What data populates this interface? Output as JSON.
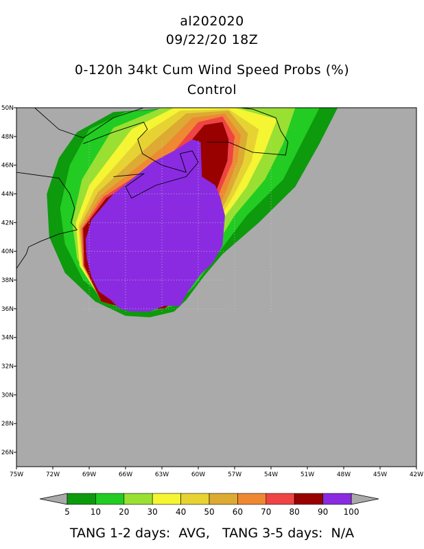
{
  "title_lines": [
    "al202020",
    "09/22/20 18Z",
    "0-120h 34kt Cum Wind Speed Probs (%)",
    "Control"
  ],
  "footer": "TANG 1-2 days:  AVG,   TANG 3-5 days:  N/A",
  "chart_data": {
    "type": "heatmap",
    "title": "0-120h 34kt Cum Wind Speed Probs (%)",
    "subtitle": "Control",
    "storm_id": "al202020",
    "valid_time": "09/22/20 18Z",
    "x_ticks": [
      "75W",
      "72W",
      "69W",
      "66W",
      "63W",
      "60W",
      "57W",
      "54W",
      "51W",
      "48W",
      "45W",
      "42W"
    ],
    "x_values": [
      -75,
      -72,
      -69,
      -66,
      -63,
      -60,
      -57,
      -54,
      -51,
      -48,
      -45,
      -42
    ],
    "y_ticks": [
      "26N",
      "28N",
      "30N",
      "32N",
      "34N",
      "36N",
      "38N",
      "40N",
      "42N",
      "44N",
      "46N",
      "48N",
      "50N"
    ],
    "y_values": [
      26,
      28,
      30,
      32,
      34,
      36,
      38,
      40,
      42,
      44,
      46,
      48,
      50
    ],
    "xlim": [
      -75,
      -42
    ],
    "ylim": [
      25,
      50
    ],
    "grid": true,
    "background_color": "#aaaaaa",
    "colorbar": {
      "levels": [
        "5",
        "10",
        "20",
        "30",
        "40",
        "50",
        "60",
        "70",
        "80",
        "90",
        "100"
      ],
      "colors": [
        "#0d9a0d",
        "#22cc22",
        "#99e033",
        "#f5f533",
        "#e6d333",
        "#ddaa33",
        "#ee8833",
        "#ee4444",
        "#990000",
        "#8a2be2"
      ]
    },
    "contours": [
      {
        "level": 5,
        "color": "#0d9a0d",
        "outline": [
          [
            -70,
            48.3
          ],
          [
            -67,
            49.7
          ],
          [
            -62,
            50
          ],
          [
            -53.5,
            50
          ],
          [
            -48.5,
            50
          ],
          [
            -50,
            47.5
          ],
          [
            -52,
            44.5
          ],
          [
            -55,
            42
          ],
          [
            -58,
            39.8
          ],
          [
            -59.5,
            38.3
          ],
          [
            -61,
            36.6
          ],
          [
            -62,
            35.8
          ],
          [
            -64,
            35.4
          ],
          [
            -66,
            35.5
          ],
          [
            -68.5,
            36.5
          ],
          [
            -71,
            38.5
          ],
          [
            -72.3,
            41
          ],
          [
            -72.5,
            44
          ],
          [
            -71.5,
            46.5
          ]
        ]
      },
      {
        "level": 10,
        "color": "#22cc22",
        "outline": [
          [
            -69,
            48.5
          ],
          [
            -66,
            49.7
          ],
          [
            -61,
            50
          ],
          [
            -55,
            50
          ],
          [
            -50,
            50
          ],
          [
            -51.5,
            47.5
          ],
          [
            -53,
            45
          ],
          [
            -56,
            42.5
          ],
          [
            -58.7,
            39.5
          ],
          [
            -60.3,
            37.6
          ],
          [
            -62,
            36.2
          ],
          [
            -64,
            35.8
          ],
          [
            -67,
            36.2
          ],
          [
            -69.5,
            38
          ],
          [
            -71,
            40.5
          ],
          [
            -71.4,
            43
          ],
          [
            -70.6,
            46
          ]
        ]
      },
      {
        "level": 20,
        "color": "#99e033",
        "outline": [
          [
            -67,
            48.6
          ],
          [
            -63,
            50
          ],
          [
            -57,
            50
          ],
          [
            -52,
            50
          ],
          [
            -53,
            47.5
          ],
          [
            -54.5,
            45
          ],
          [
            -57,
            42.5
          ],
          [
            -59.2,
            39.5
          ],
          [
            -60.8,
            37.2
          ],
          [
            -62.6,
            36.1
          ],
          [
            -65.5,
            36
          ],
          [
            -68.2,
            37
          ],
          [
            -70,
            39.5
          ],
          [
            -70.4,
            42
          ],
          [
            -69.6,
            45
          ]
        ]
      },
      {
        "level": 30,
        "color": "#f5f533",
        "outline": [
          [
            -65.5,
            48.5
          ],
          [
            -62,
            50
          ],
          [
            -57,
            50
          ],
          [
            -53.5,
            49.2
          ],
          [
            -54.5,
            47
          ],
          [
            -56,
            44.5
          ],
          [
            -58,
            42.2
          ],
          [
            -59.6,
            39.5
          ],
          [
            -61,
            37.2
          ],
          [
            -62.8,
            36
          ],
          [
            -65.5,
            35.9
          ],
          [
            -68,
            36.6
          ],
          [
            -69.8,
            39
          ],
          [
            -70.1,
            42
          ],
          [
            -69,
            44.6
          ]
        ]
      },
      {
        "level": 40,
        "color": "#e6d333",
        "outline": [
          [
            -64.5,
            48.2
          ],
          [
            -61.5,
            49.8
          ],
          [
            -57.5,
            49.9
          ],
          [
            -55,
            48.5
          ],
          [
            -55.6,
            46.3
          ],
          [
            -57,
            44
          ],
          [
            -58.6,
            41.8
          ],
          [
            -59.7,
            39.4
          ],
          [
            -61,
            37.1
          ],
          [
            -62.8,
            36
          ],
          [
            -65.5,
            35.9
          ],
          [
            -68,
            36.5
          ],
          [
            -69.6,
            39
          ],
          [
            -69.9,
            41.8
          ],
          [
            -68.6,
            44.3
          ]
        ]
      },
      {
        "level": 50,
        "color": "#ddaa33",
        "outline": [
          [
            -63.5,
            47.8
          ],
          [
            -61,
            49.6
          ],
          [
            -57.5,
            49.8
          ],
          [
            -55.9,
            48.2
          ],
          [
            -56.3,
            46.2
          ],
          [
            -57.4,
            44
          ],
          [
            -58.9,
            41.6
          ],
          [
            -59.8,
            39.3
          ],
          [
            -61,
            37.1
          ],
          [
            -62.8,
            36
          ],
          [
            -65.5,
            35.9
          ],
          [
            -68,
            36.5
          ],
          [
            -69.5,
            39
          ],
          [
            -69.8,
            41.7
          ],
          [
            -68.3,
            44.1
          ]
        ]
      },
      {
        "level": 60,
        "color": "#ee8833",
        "outline": [
          [
            -62.7,
            47.4
          ],
          [
            -60.5,
            49.3
          ],
          [
            -57.8,
            49.6
          ],
          [
            -56.5,
            48.1
          ],
          [
            -56.8,
            46.2
          ],
          [
            -57.8,
            44
          ],
          [
            -59.1,
            41.5
          ],
          [
            -59.9,
            39.3
          ],
          [
            -61,
            37.1
          ],
          [
            -62.8,
            36
          ],
          [
            -65.5,
            35.9
          ],
          [
            -68,
            36.5
          ],
          [
            -69.5,
            39
          ],
          [
            -69.7,
            41.6
          ],
          [
            -68,
            43.9
          ]
        ]
      },
      {
        "level": 70,
        "color": "#ee4444",
        "outline": [
          [
            -62,
            47
          ],
          [
            -60,
            49
          ],
          [
            -58,
            49.4
          ],
          [
            -57,
            48
          ],
          [
            -57.2,
            46.2
          ],
          [
            -58.2,
            44.2
          ],
          [
            -59.3,
            41.5
          ],
          [
            -60,
            39.3
          ],
          [
            -61,
            37.1
          ],
          [
            -62.8,
            36
          ],
          [
            -65.5,
            35.9
          ],
          [
            -68,
            36.5
          ],
          [
            -69.5,
            39
          ],
          [
            -69.6,
            41.6
          ],
          [
            -67.8,
            43.8
          ]
        ]
      },
      {
        "level": 80,
        "color": "#990000",
        "outline": [
          [
            -61.5,
            46.8
          ],
          [
            -59.5,
            48.8
          ],
          [
            -58,
            49
          ],
          [
            -57.5,
            47.8
          ],
          [
            -57.6,
            46.3
          ],
          [
            -58.4,
            44.5
          ],
          [
            -59.4,
            41.7
          ],
          [
            -60,
            39.3
          ],
          [
            -61,
            37.1
          ],
          [
            -62.8,
            36
          ],
          [
            -65.5,
            35.9
          ],
          [
            -68,
            36.5
          ],
          [
            -69.4,
            39
          ],
          [
            -69.5,
            41.6
          ],
          [
            -67.6,
            43.7
          ]
        ]
      },
      {
        "level": 90,
        "color": "#8a2be2",
        "outline": [
          [
            -68.8,
            42.2
          ],
          [
            -67,
            44
          ],
          [
            -65.5,
            45
          ],
          [
            -63.8,
            46.2
          ],
          [
            -62,
            47
          ],
          [
            -60.5,
            47.8
          ],
          [
            -59.8,
            47.6
          ],
          [
            -59.7,
            45.2
          ],
          [
            -58.6,
            44.6
          ],
          [
            -58.2,
            43.8
          ],
          [
            -57.8,
            42.5
          ],
          [
            -58,
            40.4
          ],
          [
            -58.8,
            39.2
          ],
          [
            -59.8,
            38.4
          ],
          [
            -61,
            37
          ],
          [
            -61.5,
            36.2
          ],
          [
            -62.8,
            36.2
          ],
          [
            -64,
            35.8
          ],
          [
            -65.5,
            35.8
          ],
          [
            -66.5,
            36
          ],
          [
            -67.2,
            36.6
          ],
          [
            -68.2,
            37.2
          ],
          [
            -68.8,
            38.2
          ],
          [
            -69.2,
            39.5
          ],
          [
            -69.3,
            40.8
          ]
        ]
      }
    ]
  }
}
